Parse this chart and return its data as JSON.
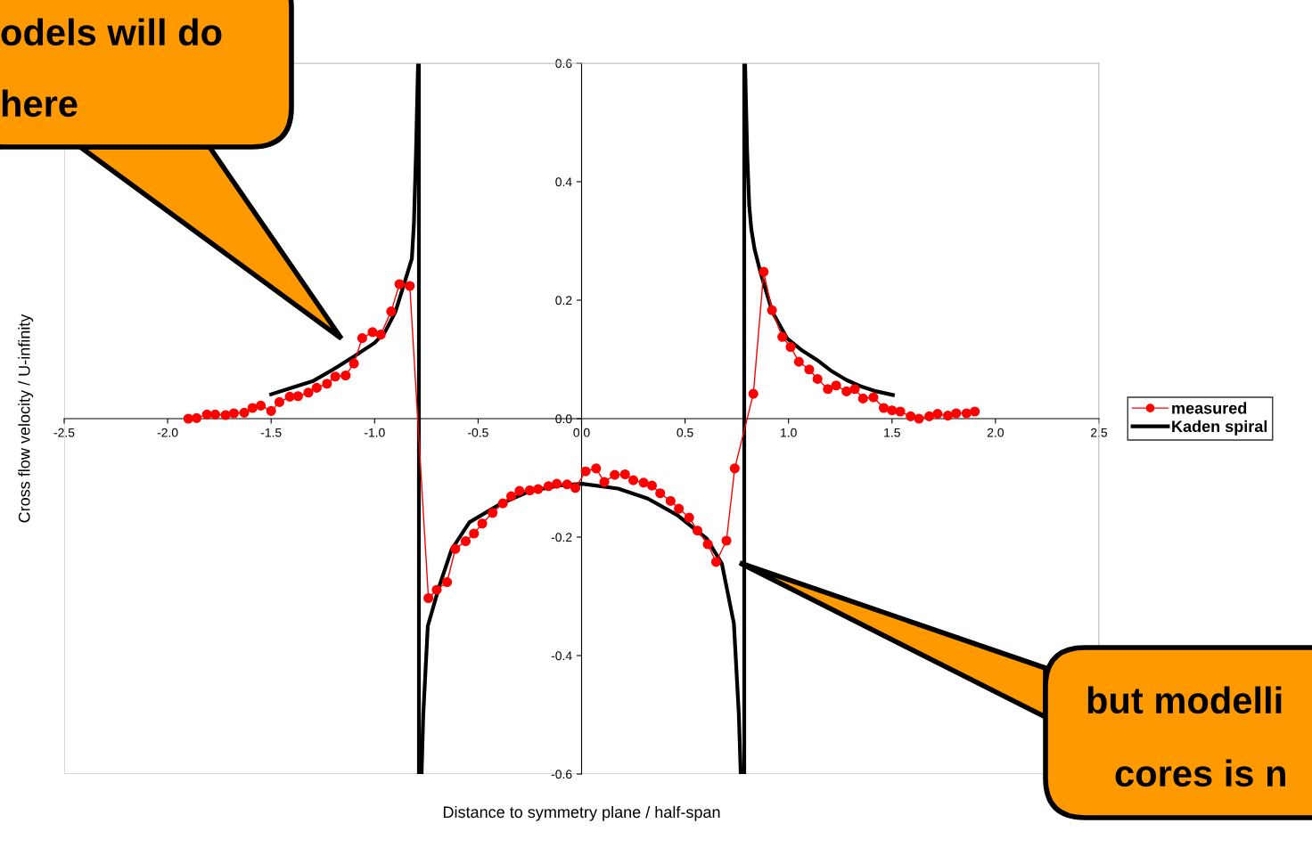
{
  "chart_data": {
    "type": "line",
    "xlabel": "Distance to symmetry plane / half-span",
    "ylabel": "Cross flow velocity / U-infinity",
    "xlim": [
      -2.5,
      2.5
    ],
    "xticks": [
      -2.5,
      {
        "value": -2,
        "label": "-2.0"
      },
      -1.5,
      {
        "value": -1,
        "label": "-1.0"
      },
      -0.5,
      {
        "value": 0,
        "label": "0.0"
      },
      0.5,
      {
        "value": 1,
        "label": "1.0"
      },
      1.5,
      {
        "value": 2,
        "label": "2.0"
      },
      2.5
    ],
    "ylim": [
      -0.6,
      0.6
    ],
    "yticks": [
      -0.6,
      -0.4,
      -0.2,
      {
        "value": 0,
        "label": "0.0"
      },
      0.2,
      0.4,
      0.6
    ],
    "grid": false,
    "legend": "right",
    "annotations": [
      "odels will do",
      "here",
      "but modelli",
      "cores is n"
    ],
    "series": [
      {
        "name": "measured",
        "color": "#ff0000",
        "marker": "circle",
        "line_style": "solid",
        "x": [
          -1.9,
          -1.86,
          -1.81,
          -1.77,
          -1.72,
          -1.68,
          -1.63,
          -1.59,
          -1.55,
          -1.5,
          -1.46,
          -1.41,
          -1.37,
          -1.32,
          -1.28,
          -1.23,
          -1.19,
          -1.14,
          -1.1,
          -1.06,
          -1.01,
          -0.97,
          -0.92,
          -0.88,
          -0.83,
          -0.74,
          -0.7,
          -0.65,
          -0.61,
          -0.56,
          -0.52,
          -0.48,
          -0.43,
          -0.38,
          -0.34,
          -0.3,
          -0.25,
          -0.21,
          -0.16,
          -0.12,
          -0.07,
          -0.03,
          0.02,
          0.07,
          0.11,
          0.16,
          0.21,
          0.25,
          0.3,
          0.34,
          0.38,
          0.43,
          0.47,
          0.52,
          0.56,
          0.61,
          0.65,
          0.7,
          0.74,
          0.83,
          0.88,
          0.92,
          0.97,
          1.01,
          1.05,
          1.1,
          1.14,
          1.19,
          1.23,
          1.28,
          1.32,
          1.36,
          1.41,
          1.46,
          1.5,
          1.54,
          1.59,
          1.63,
          1.68,
          1.72,
          1.77,
          1.81,
          1.86,
          1.9
        ],
        "values": [
          0.0,
          0.001,
          0.007,
          0.007,
          0.006,
          0.009,
          0.01,
          0.018,
          0.022,
          0.013,
          0.028,
          0.037,
          0.038,
          0.044,
          0.052,
          0.059,
          0.071,
          0.073,
          0.093,
          0.136,
          0.146,
          0.142,
          0.181,
          0.227,
          0.224,
          -0.303,
          -0.289,
          -0.276,
          -0.22,
          -0.207,
          -0.194,
          -0.177,
          -0.159,
          -0.143,
          -0.131,
          -0.122,
          -0.121,
          -0.119,
          -0.114,
          -0.11,
          -0.111,
          -0.117,
          -0.089,
          -0.084,
          -0.107,
          -0.095,
          -0.094,
          -0.104,
          -0.108,
          -0.113,
          -0.126,
          -0.139,
          -0.152,
          -0.167,
          -0.189,
          -0.212,
          -0.242,
          -0.206,
          -0.084,
          0.042,
          0.248,
          0.183,
          0.138,
          0.121,
          0.096,
          0.083,
          0.067,
          0.05,
          0.056,
          0.046,
          0.05,
          0.034,
          0.036,
          0.018,
          0.014,
          0.012,
          0.004,
          0.0,
          0.004,
          0.008,
          0.005,
          0.009,
          0.009,
          0.012
        ]
      },
      {
        "name": "Kaden spiral",
        "color": "#000000",
        "marker": "none",
        "line_style": "solid",
        "x": [
          -1.5,
          -1.42,
          -1.3,
          -1.2,
          -1.1,
          -1.0,
          -0.95,
          -0.9,
          -0.85,
          -0.82,
          -0.81,
          -0.8,
          -0.79,
          -0.786,
          -0.786,
          -0.773,
          -0.765,
          -0.743,
          -0.686,
          -0.628,
          -0.542,
          -0.398,
          -0.255,
          -0.111,
          0.003,
          0.176,
          0.32,
          0.463,
          0.606,
          0.678,
          0.736,
          0.76,
          0.769,
          0.786,
          0.786,
          0.79,
          0.8,
          0.81,
          0.82,
          0.836,
          0.865,
          0.922,
          0.994,
          1.066,
          1.138,
          1.209,
          1.281,
          1.353,
          1.425,
          1.504
        ],
        "values": [
          0.041,
          0.05,
          0.063,
          0.083,
          0.105,
          0.128,
          0.146,
          0.18,
          0.236,
          0.27,
          0.33,
          0.45,
          0.6,
          0.6,
          -0.6,
          -0.6,
          -0.5,
          -0.35,
          -0.281,
          -0.221,
          -0.175,
          -0.145,
          -0.123,
          -0.113,
          -0.11,
          -0.118,
          -0.135,
          -0.163,
          -0.203,
          -0.245,
          -0.346,
          -0.5,
          -0.6,
          -0.6,
          0.6,
          0.6,
          0.45,
          0.36,
          0.32,
          0.286,
          0.246,
          0.18,
          0.135,
          0.115,
          0.099,
          0.08,
          0.065,
          0.054,
          0.046,
          0.04
        ]
      }
    ]
  }
}
